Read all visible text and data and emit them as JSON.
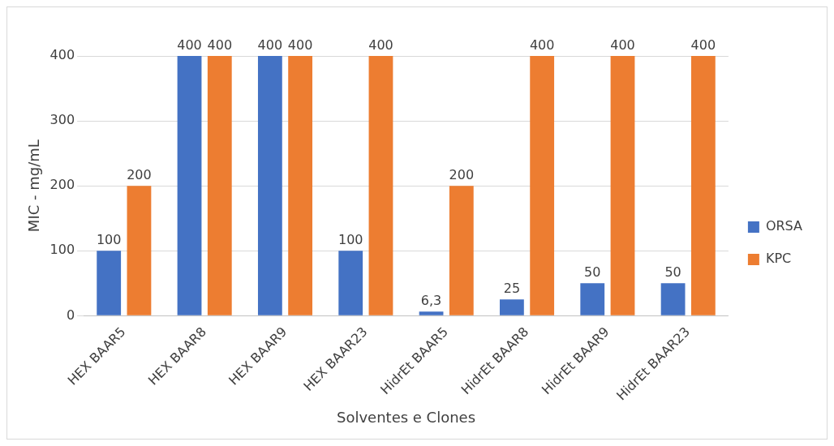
{
  "chart_data": {
    "type": "bar",
    "xlabel": "Solventes e Clones",
    "ylabel": "MIC - mg/mL",
    "categories": [
      "HEX BAAR5",
      "HEX BAAR8",
      "HEX BAAR9",
      "HEX BAAR23",
      "HidrEt BAAR5",
      "HidrEt BAAR8",
      "HidrEt BAAR9",
      "HidrEt BAAR23"
    ],
    "series": [
      {
        "name": "ORSA",
        "color": "#4472c4",
        "values": [
          100,
          400,
          400,
          100,
          6.3,
          25,
          50,
          50
        ],
        "value_labels": [
          "100",
          "400",
          "400",
          "100",
          "6,3",
          "25",
          "50",
          "50"
        ]
      },
      {
        "name": "KPC",
        "color": "#ed7d31",
        "values": [
          200,
          400,
          400,
          400,
          200,
          400,
          400,
          400
        ],
        "value_labels": [
          "200",
          "400",
          "400",
          "400",
          "200",
          "400",
          "400",
          "400"
        ]
      }
    ],
    "ylim": [
      0,
      400
    ],
    "yticks": [
      0,
      100,
      200,
      300,
      400
    ],
    "grid": "y",
    "legend": "right"
  }
}
